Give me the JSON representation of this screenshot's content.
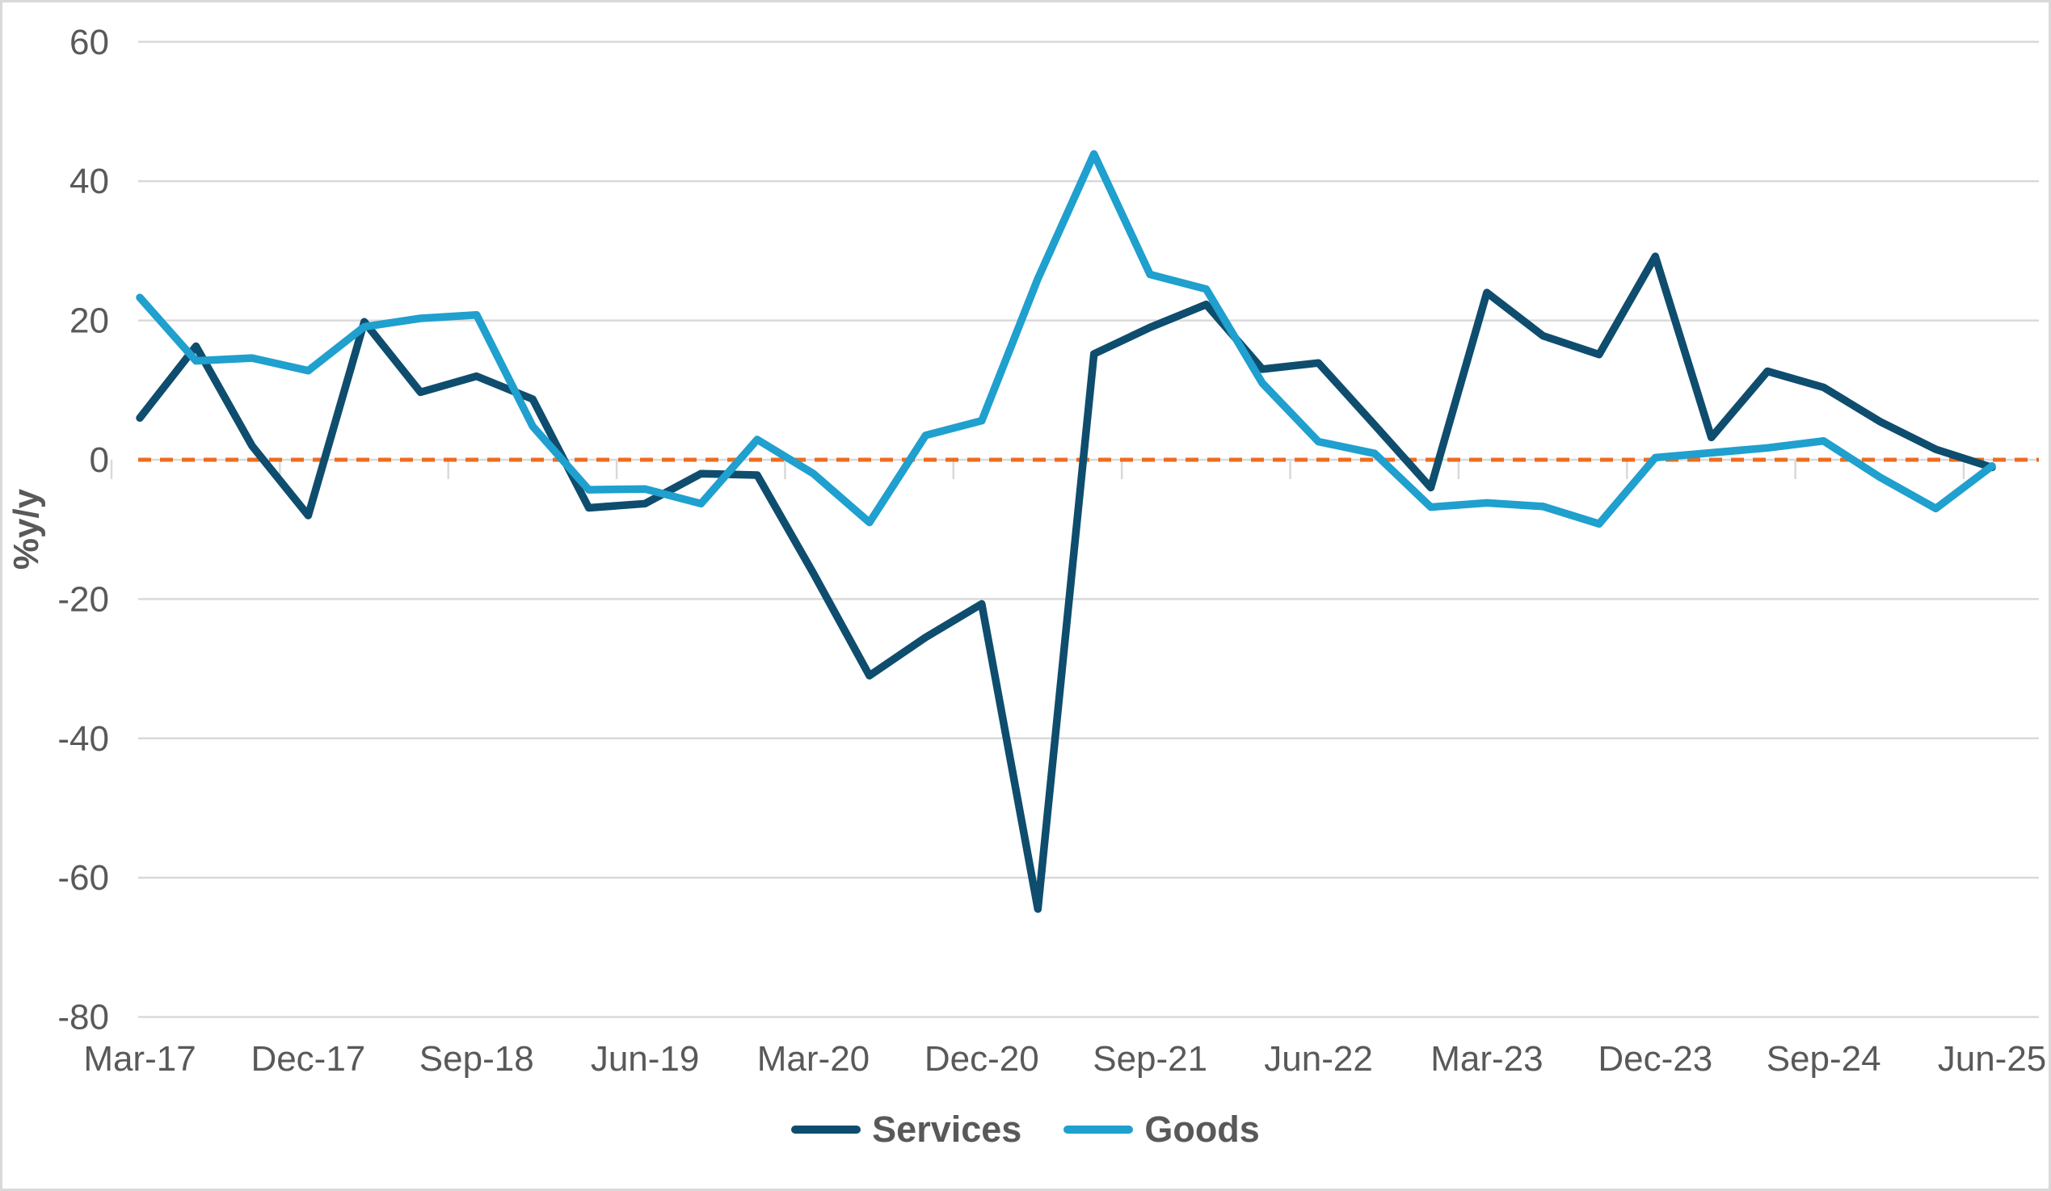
{
  "chart_data": {
    "type": "line",
    "title": "",
    "xlabel": "",
    "ylabel": "%y/y",
    "ylim": [
      -80,
      60
    ],
    "yticks": [
      60,
      40,
      20,
      0,
      -20,
      -40,
      -60,
      -80
    ],
    "grid": "horizontal",
    "zero_line": "dashed-orange",
    "x_label_interval": 3,
    "legend_position": "bottom-center",
    "categories": [
      "Mar-17",
      "Jun-17",
      "Sep-17",
      "Dec-17",
      "Mar-18",
      "Jun-18",
      "Sep-18",
      "Dec-18",
      "Mar-19",
      "Jun-19",
      "Sep-19",
      "Dec-19",
      "Mar-20",
      "Jun-20",
      "Sep-20",
      "Dec-20",
      "Mar-21",
      "Jun-21",
      "Sep-21",
      "Dec-21",
      "Mar-22",
      "Jun-22",
      "Sep-22",
      "Dec-22",
      "Mar-23",
      "Jun-23",
      "Sep-23",
      "Dec-23",
      "Mar-24",
      "Jun-24",
      "Sep-24",
      "Dec-24",
      "Mar-25",
      "Jun-25"
    ],
    "x_tick_labels_shown": [
      "Mar-17",
      "Dec-17",
      "Sep-18",
      "Jun-19",
      "Mar-20",
      "Dec-20",
      "Sep-21",
      "Jun-22",
      "Mar-23",
      "Dec-23",
      "Sep-24",
      "Jun-25"
    ],
    "series": [
      {
        "name": "Services",
        "color": "#0E4D6E",
        "values": [
          6.0,
          16.3,
          2.0,
          -8.0,
          19.8,
          9.7,
          12.0,
          8.7,
          -6.9,
          -6.3,
          -2.0,
          -2.2,
          -16.3,
          -31.0,
          -25.5,
          -20.7,
          -64.5,
          15.2,
          19.0,
          22.3,
          13.0,
          13.9,
          5.0,
          -4.0,
          24.0,
          17.8,
          15.1,
          29.2,
          3.2,
          12.7,
          10.4,
          5.5,
          1.5,
          -1.1
        ]
      },
      {
        "name": "Goods",
        "color": "#1FA0CE",
        "values": [
          23.3,
          14.2,
          14.6,
          12.8,
          19.1,
          20.3,
          20.8,
          4.8,
          -4.3,
          -4.2,
          -6.3,
          2.9,
          -2.0,
          -9.0,
          3.5,
          5.6,
          26.0,
          43.9,
          26.6,
          24.5,
          11.0,
          2.6,
          0.9,
          -6.8,
          -6.2,
          -6.7,
          -9.2,
          0.3,
          1.0,
          1.7,
          2.7,
          -2.5,
          -7.0,
          -0.9
        ]
      }
    ],
    "colors": {
      "gridline": "#D9D9D9",
      "zero_line": "#ED6C21",
      "text": "#595959",
      "border": "#D9D9D9",
      "background": "#FFFFFF"
    }
  }
}
